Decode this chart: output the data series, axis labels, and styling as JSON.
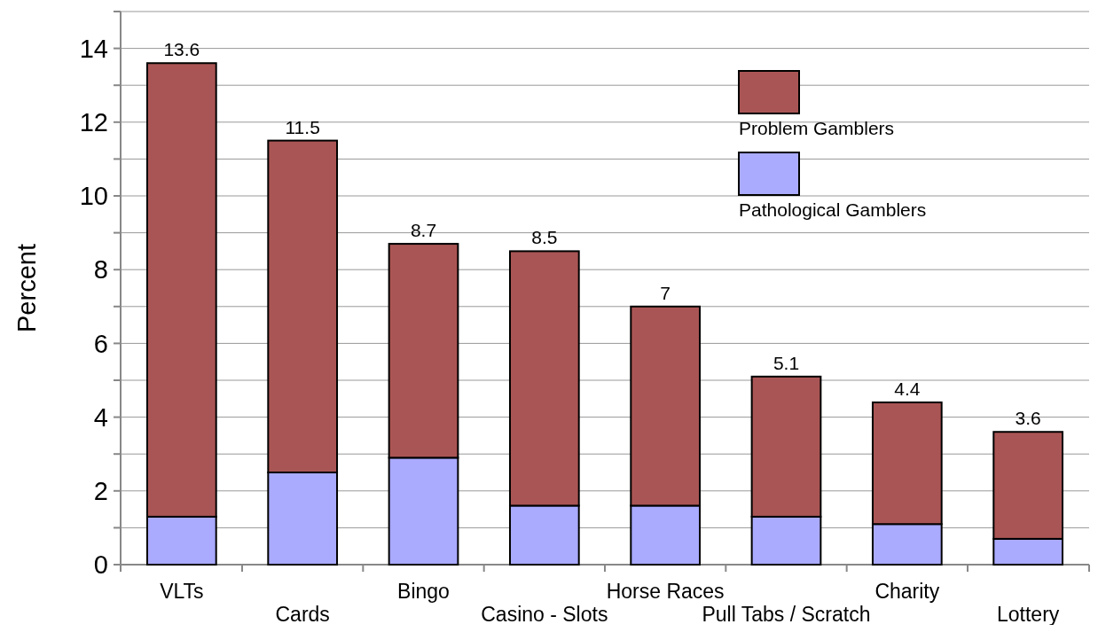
{
  "chart_data": {
    "type": "bar",
    "stacked": true,
    "ylabel": "Percent",
    "categories": [
      "VLTs",
      "Cards",
      "Bingo",
      "Casino - Slots",
      "Horse Races",
      "Pull Tabs / Scratch",
      "Charity",
      "Lottery"
    ],
    "series": [
      {
        "name": "Pathological Gamblers",
        "color": "#aaaaff",
        "values": [
          1.3,
          2.5,
          2.9,
          1.6,
          1.6,
          1.3,
          1.1,
          0.7
        ]
      },
      {
        "name": "Problem Gamblers",
        "color": "#aa5555",
        "values": [
          12.3,
          9.0,
          5.8,
          6.9,
          5.4,
          3.8,
          3.3,
          2.9
        ]
      }
    ],
    "totals": [
      "13.6",
      "11.5",
      "8.7",
      "8.5",
      "7",
      "5.1",
      "4.4",
      "3.6"
    ],
    "ylim": [
      0,
      15
    ],
    "yticks": [
      0,
      {
        "value": 1,
        "label": null
      },
      2,
      {
        "value": 3,
        "label": null
      },
      4,
      {
        "value": 5,
        "label": null
      },
      6,
      {
        "value": 7,
        "label": null
      },
      8,
      {
        "value": 9,
        "label": null
      },
      10,
      {
        "value": 11,
        "label": null
      },
      12,
      {
        "value": 13,
        "label": null
      },
      14,
      {
        "value": 15,
        "label": null
      }
    ],
    "grid": "y",
    "legend": "top right"
  }
}
